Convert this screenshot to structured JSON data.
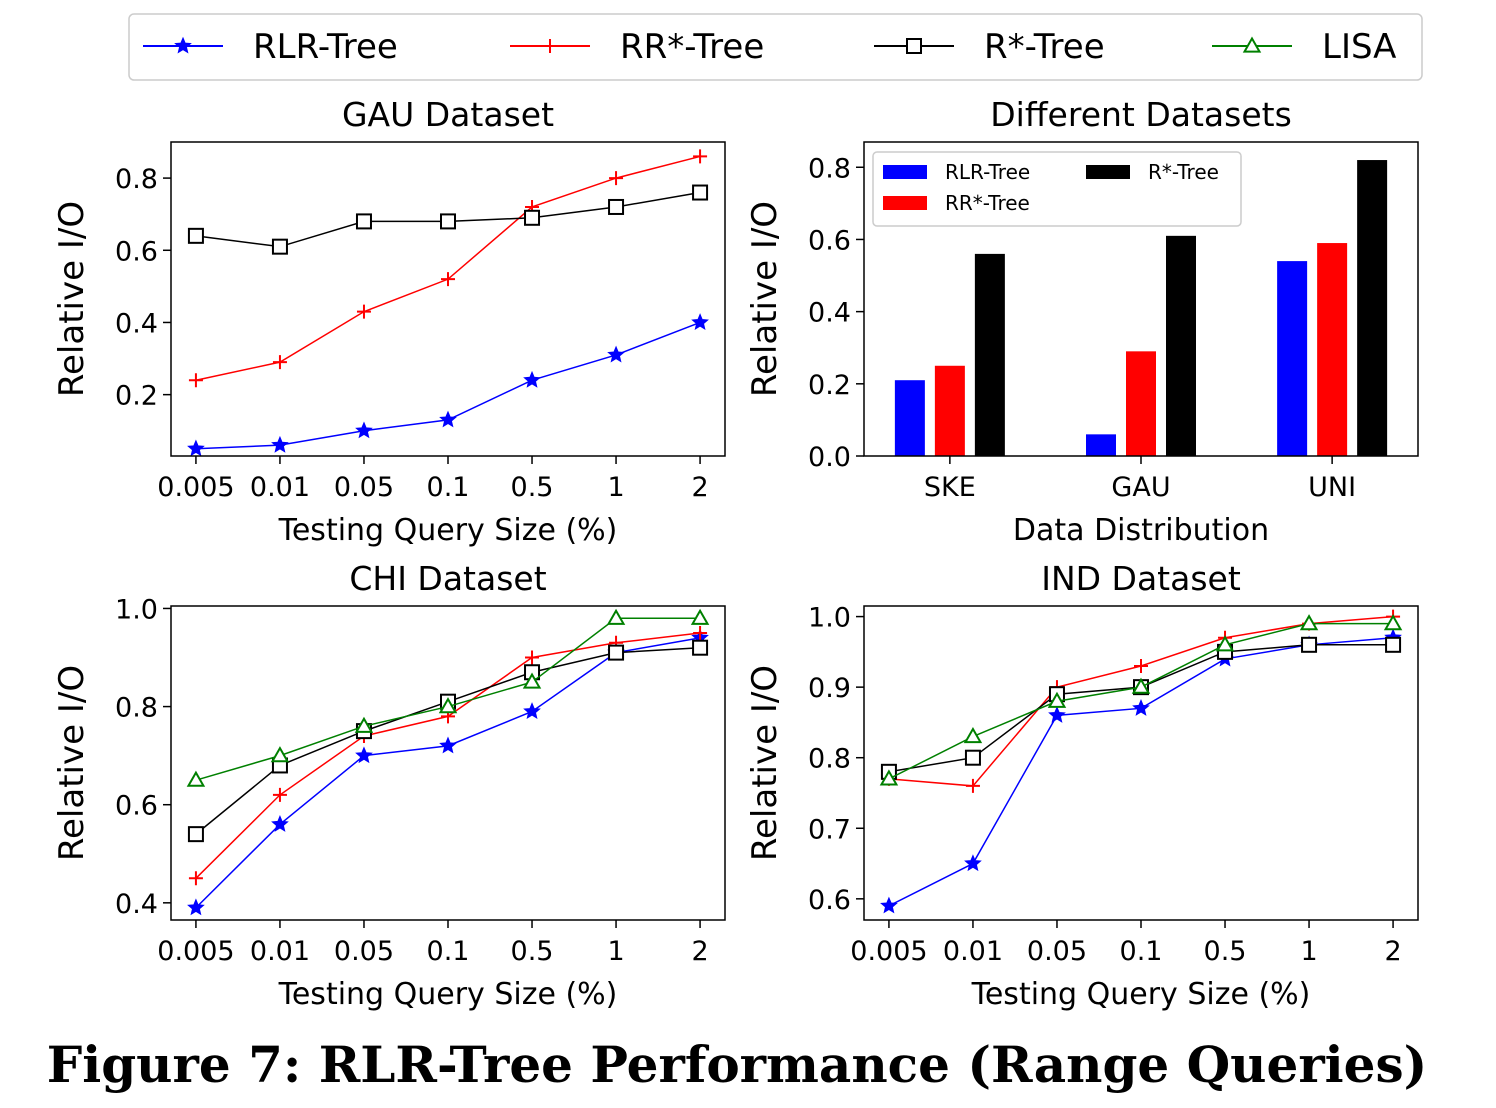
{
  "legend": {
    "entries": [
      {
        "label": "RLR-Tree",
        "color": "#0000ff",
        "marker": "star"
      },
      {
        "label": "RR*-Tree",
        "color": "#ff0000",
        "marker": "plus"
      },
      {
        "label": "R*-Tree",
        "color": "#000000",
        "marker": "square"
      },
      {
        "label": "LISA",
        "color": "#008000",
        "marker": "triangle"
      }
    ]
  },
  "caption": "Figure 7: RLR-Tree Performance (Range Queries)",
  "chart_data": [
    {
      "type": "line",
      "title": "GAU Dataset",
      "xlabel": "Testing Query Size (%)",
      "ylabel": "Relative I/O",
      "categories": [
        "0.005",
        "0.01",
        "0.05",
        "0.1",
        "0.5",
        "1",
        "2"
      ],
      "ylim": [
        0.03,
        0.9
      ],
      "yticks": [
        0.2,
        0.4,
        0.6,
        0.8
      ],
      "ytick_labels": [
        "0.2",
        "0.4",
        "0.6",
        "0.8"
      ],
      "series": [
        {
          "name": "RLR-Tree",
          "color": "#0000ff",
          "marker": "star",
          "values": [
            0.05,
            0.06,
            0.1,
            0.13,
            0.24,
            0.31,
            0.4
          ]
        },
        {
          "name": "RR*-Tree",
          "color": "#ff0000",
          "marker": "plus",
          "values": [
            0.24,
            0.29,
            0.43,
            0.52,
            0.72,
            0.8,
            0.86
          ]
        },
        {
          "name": "R*-Tree",
          "color": "#000000",
          "marker": "square",
          "values": [
            0.64,
            0.61,
            0.68,
            0.68,
            0.69,
            0.72,
            0.76
          ]
        }
      ]
    },
    {
      "type": "bar",
      "title": "Different Datasets",
      "xlabel": "Data Distribution",
      "ylabel": "Relative I/O",
      "categories": [
        "SKE",
        "GAU",
        "UNI"
      ],
      "ylim": [
        0,
        0.87
      ],
      "yticks": [
        0.0,
        0.2,
        0.4,
        0.6,
        0.8
      ],
      "ytick_labels": [
        "0.0",
        "0.2",
        "0.4",
        "0.6",
        "0.8"
      ],
      "legend": {
        "placement": "top-left",
        "ncol": 2
      },
      "series": [
        {
          "name": "RLR-Tree",
          "color": "#0000ff",
          "values": [
            0.21,
            0.06,
            0.54
          ]
        },
        {
          "name": "RR*-Tree",
          "color": "#ff0000",
          "values": [
            0.25,
            0.29,
            0.59
          ]
        },
        {
          "name": "R*-Tree",
          "color": "#000000",
          "values": [
            0.56,
            0.61,
            0.82
          ]
        }
      ]
    },
    {
      "type": "line",
      "title": "CHI Dataset",
      "xlabel": "Testing Query Size (%)",
      "ylabel": "Relative I/O",
      "categories": [
        "0.005",
        "0.01",
        "0.05",
        "0.1",
        "0.5",
        "1",
        "2"
      ],
      "ylim": [
        0.365,
        1.005
      ],
      "yticks": [
        0.4,
        0.6,
        0.8,
        1.0
      ],
      "ytick_labels": [
        "0.4",
        "0.6",
        "0.8",
        "1.0"
      ],
      "series": [
        {
          "name": "RLR-Tree",
          "color": "#0000ff",
          "marker": "star",
          "values": [
            0.39,
            0.56,
            0.7,
            0.72,
            0.79,
            0.91,
            0.94
          ]
        },
        {
          "name": "RR*-Tree",
          "color": "#ff0000",
          "marker": "plus",
          "values": [
            0.45,
            0.62,
            0.74,
            0.78,
            0.9,
            0.93,
            0.95
          ]
        },
        {
          "name": "R*-Tree",
          "color": "#000000",
          "marker": "square",
          "values": [
            0.54,
            0.68,
            0.75,
            0.81,
            0.87,
            0.91,
            0.92
          ]
        },
        {
          "name": "LISA",
          "color": "#008000",
          "marker": "triangle",
          "values": [
            0.65,
            0.7,
            0.76,
            0.8,
            0.85,
            0.98,
            0.98
          ]
        }
      ]
    },
    {
      "type": "line",
      "title": "IND Dataset",
      "xlabel": "Testing Query Size (%)",
      "ylabel": "Relative I/O",
      "categories": [
        "0.005",
        "0.01",
        "0.05",
        "0.1",
        "0.5",
        "1",
        "2"
      ],
      "ylim": [
        0.57,
        1.015
      ],
      "yticks": [
        0.6,
        0.7,
        0.8,
        0.9,
        1.0
      ],
      "ytick_labels": [
        "0.6",
        "0.7",
        "0.8",
        "0.9",
        "1.0"
      ],
      "series": [
        {
          "name": "RLR-Tree",
          "color": "#0000ff",
          "marker": "star",
          "values": [
            0.59,
            0.65,
            0.86,
            0.87,
            0.94,
            0.96,
            0.97
          ]
        },
        {
          "name": "RR*-Tree",
          "color": "#ff0000",
          "marker": "plus",
          "values": [
            0.77,
            0.76,
            0.9,
            0.93,
            0.97,
            0.99,
            1.0
          ]
        },
        {
          "name": "R*-Tree",
          "color": "#000000",
          "marker": "square",
          "values": [
            0.78,
            0.8,
            0.89,
            0.9,
            0.95,
            0.96,
            0.96
          ]
        },
        {
          "name": "LISA",
          "color": "#008000",
          "marker": "triangle",
          "values": [
            0.77,
            0.83,
            0.88,
            0.9,
            0.96,
            0.99,
            0.99
          ]
        }
      ]
    }
  ]
}
